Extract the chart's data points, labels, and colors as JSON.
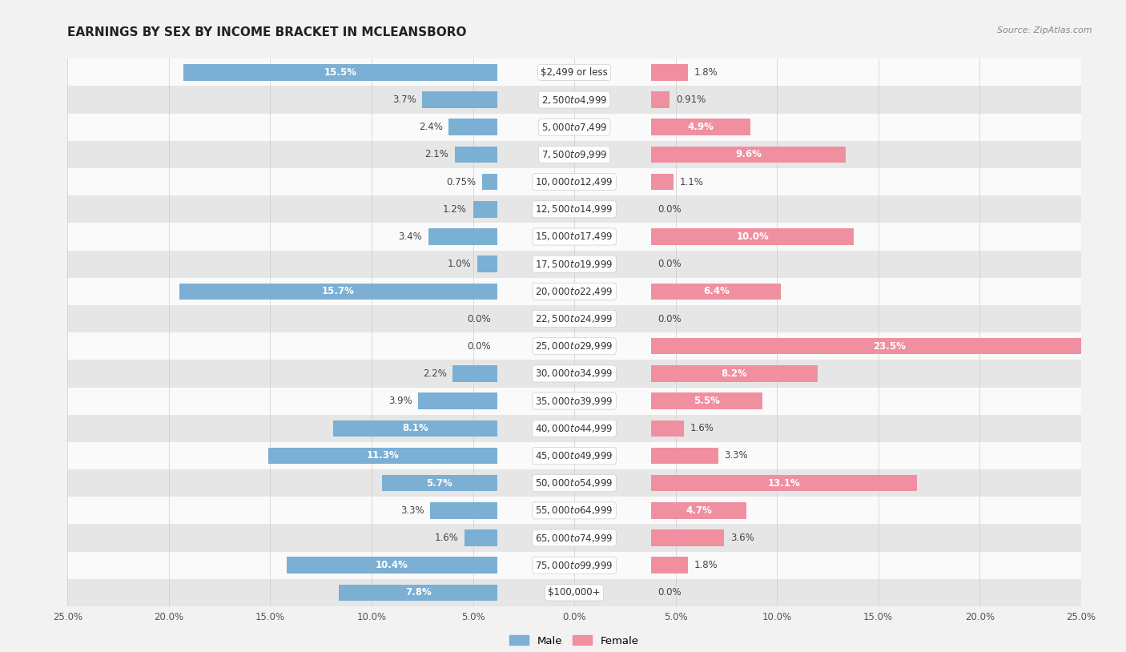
{
  "title": "EARNINGS BY SEX BY INCOME BRACKET IN MCLEANSBORO",
  "source": "Source: ZipAtlas.com",
  "categories": [
    "$2,499 or less",
    "$2,500 to $4,999",
    "$5,000 to $7,499",
    "$7,500 to $9,999",
    "$10,000 to $12,499",
    "$12,500 to $14,999",
    "$15,000 to $17,499",
    "$17,500 to $19,999",
    "$20,000 to $22,499",
    "$22,500 to $24,999",
    "$25,000 to $29,999",
    "$30,000 to $34,999",
    "$35,000 to $39,999",
    "$40,000 to $44,999",
    "$45,000 to $49,999",
    "$50,000 to $54,999",
    "$55,000 to $64,999",
    "$65,000 to $74,999",
    "$75,000 to $99,999",
    "$100,000+"
  ],
  "male_values": [
    15.5,
    3.7,
    2.4,
    2.1,
    0.75,
    1.2,
    3.4,
    1.0,
    15.7,
    0.0,
    0.0,
    2.2,
    3.9,
    8.1,
    11.3,
    5.7,
    3.3,
    1.6,
    10.4,
    7.8
  ],
  "female_values": [
    1.8,
    0.91,
    4.9,
    9.6,
    1.1,
    0.0,
    10.0,
    0.0,
    6.4,
    0.0,
    23.5,
    8.2,
    5.5,
    1.6,
    3.3,
    13.1,
    4.7,
    3.6,
    1.8,
    0.0
  ],
  "male_color": "#7bafd4",
  "female_color": "#f08fa0",
  "male_label": "Male",
  "female_label": "Female",
  "xlim": 25.0,
  "background_color": "#f2f2f2",
  "row_color_light": "#fafafa",
  "row_color_dark": "#e6e6e6",
  "title_fontsize": 11,
  "bar_label_fontsize": 8.5,
  "cat_label_fontsize": 8.5,
  "bar_height": 0.6,
  "inner_label_threshold": 4.0
}
